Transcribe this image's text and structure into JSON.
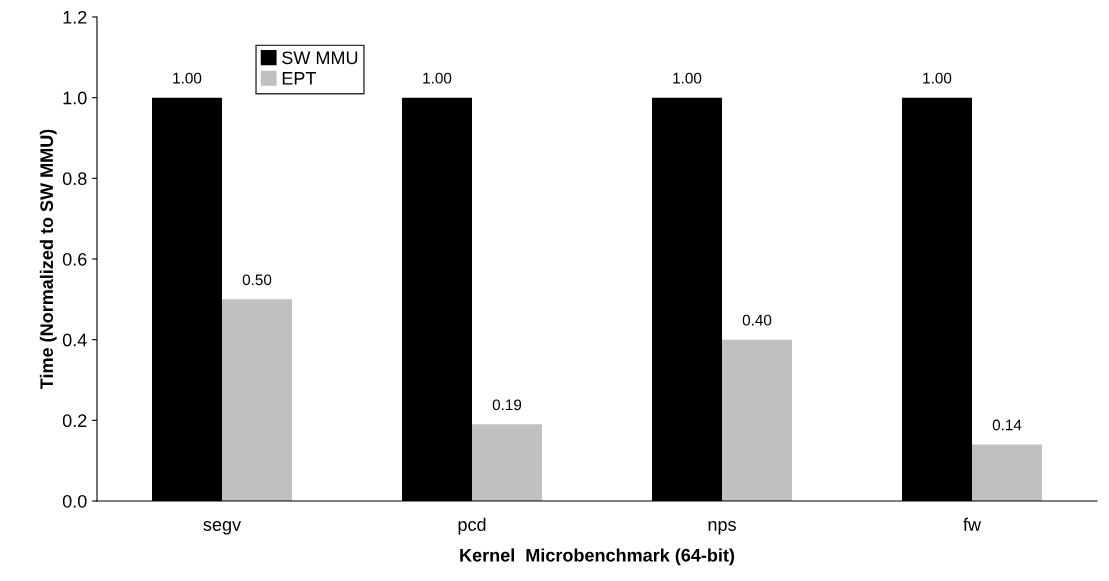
{
  "chart_data": {
    "type": "bar",
    "xlabel": "Kernel  Microbenchmark (64-bit)",
    "ylabel": "Time (Normalized to SW MMU)",
    "categories": [
      "segv",
      "pcd",
      "nps",
      "fw"
    ],
    "series": [
      {
        "name": "SW MMU",
        "color": "#000000",
        "values": [
          1.0,
          1.0,
          1.0,
          1.0
        ],
        "value_labels": [
          "1.00",
          "1.00",
          "1.00",
          "1.00"
        ]
      },
      {
        "name": "EPT",
        "color": "#c0c0c0",
        "values": [
          0.5,
          0.19,
          0.4,
          0.14
        ],
        "value_labels": [
          "0.50",
          "0.19",
          "0.40",
          "0.14"
        ]
      }
    ],
    "ylim": [
      0,
      1.2
    ],
    "yticks": [
      {
        "value": 0,
        "label": "0.0"
      },
      {
        "value": 0.2,
        "label": "0.2"
      },
      {
        "value": 0.4,
        "label": "0.4"
      },
      {
        "value": 0.6,
        "label": "0.6"
      },
      {
        "value": 0.8,
        "label": "0.8"
      },
      {
        "value": 1.0,
        "label": "1.0"
      },
      {
        "value": 1.2,
        "label": "1.2"
      }
    ],
    "grid": false,
    "legend": "top left"
  }
}
